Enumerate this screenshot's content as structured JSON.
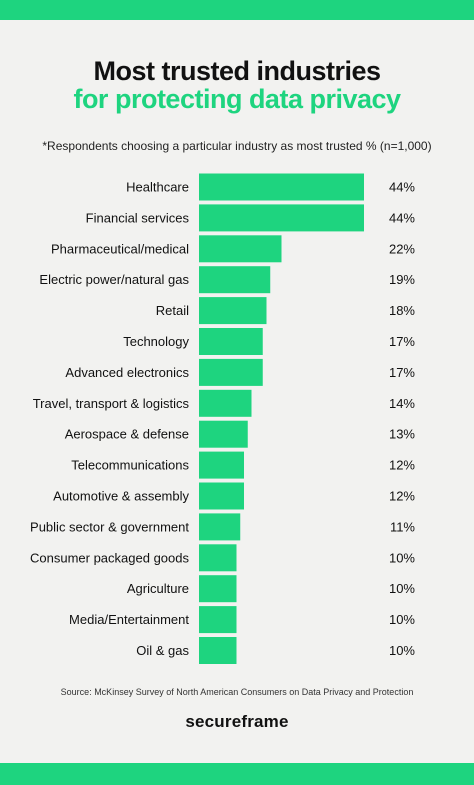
{
  "header": {
    "title_line1": "Most trusted industries",
    "title_line2": "for protecting data privacy",
    "subtitle": "*Respondents choosing a particular industry as most trusted % (n=1,000)"
  },
  "footer": {
    "source": "Source: McKinsey Survey of North American Consumers on Data Privacy and Protection",
    "brand": "secureframe"
  },
  "colors": {
    "accent": "#1ed47f",
    "background": "#f2f2f0",
    "text": "#111111"
  },
  "chart_data": {
    "type": "bar",
    "orientation": "horizontal",
    "categories": [
      "Healthcare",
      "Financial services",
      "Pharmaceutical/medical",
      "Electric power/natural gas",
      "Retail",
      "Technology",
      "Advanced electronics",
      "Travel, transport & logistics",
      "Aerospace & defense",
      "Telecommunications",
      "Automotive & assembly",
      "Public sector & government",
      "Consumer packaged goods",
      "Agriculture",
      "Media/Entertainment",
      "Oil & gas"
    ],
    "values": [
      44,
      44,
      22,
      19,
      18,
      17,
      17,
      14,
      13,
      12,
      12,
      11,
      10,
      10,
      10,
      10
    ],
    "value_labels": [
      "44%",
      "44%",
      "22%",
      "19%",
      "18%",
      "17%",
      "17%",
      "14%",
      "13%",
      "12%",
      "12%",
      "11%",
      "10%",
      "10%",
      "10%",
      "10%"
    ],
    "xlim": [
      0,
      44
    ],
    "grid": false,
    "legend": "none",
    "bar_color": "#1ed47f"
  }
}
